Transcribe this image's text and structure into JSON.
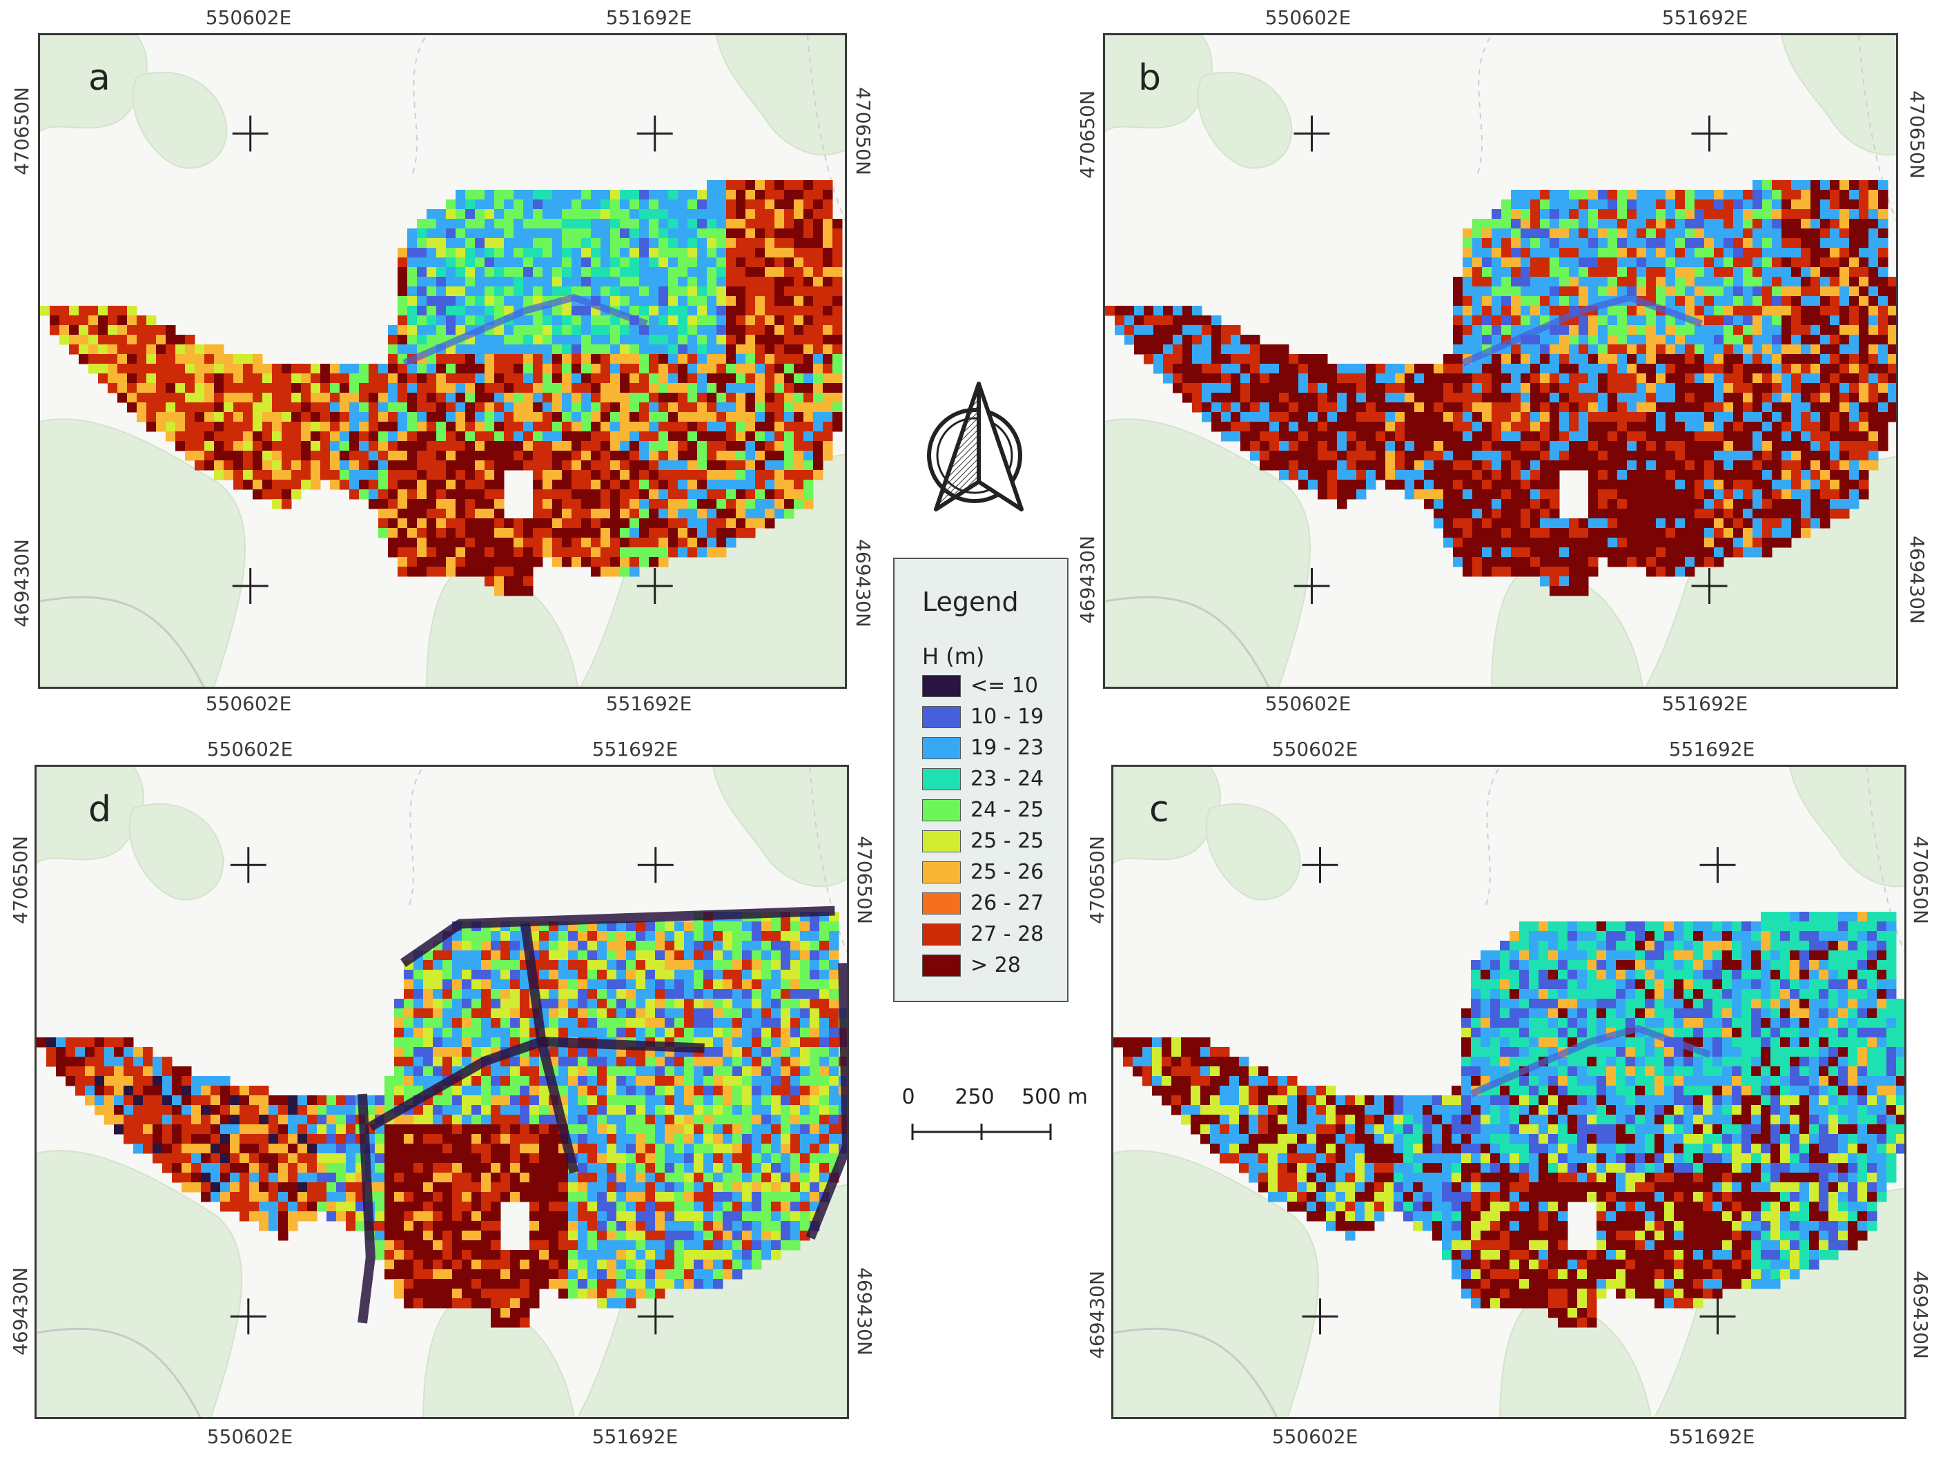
{
  "coords": {
    "x_left": "550602E",
    "x_right": "551692E",
    "y_top": "470650N",
    "y_bottom": "469430N"
  },
  "panels": [
    {
      "id": "a",
      "letter": "a"
    },
    {
      "id": "b",
      "letter": "b"
    },
    {
      "id": "d",
      "letter": "d"
    },
    {
      "id": "c",
      "letter": "c"
    }
  ],
  "legend": {
    "title": "Legend",
    "subtitle": "H (m)",
    "classes": [
      {
        "label": "<= 10",
        "color": "#2a1540"
      },
      {
        "label": "10 - 19",
        "color": "#4660dc"
      },
      {
        "label": "19 - 23",
        "color": "#37a9f4"
      },
      {
        "label": "23 - 24",
        "color": "#1fe0b0"
      },
      {
        "label": "24 - 25",
        "color": "#6ef55a"
      },
      {
        "label": "25 - 25",
        "color": "#d2ec32"
      },
      {
        "label": "25 - 26",
        "color": "#f9b534"
      },
      {
        "label": "26 - 27",
        "color": "#f56f1c"
      },
      {
        "label": "27 - 28",
        "color": "#cd2a08"
      },
      {
        "label": "> 28",
        "color": "#7a0403"
      }
    ]
  },
  "scale": {
    "labels": [
      "0",
      "250",
      "500 m"
    ]
  },
  "north_arrow": {
    "icon": "north-arrow-icon"
  }
}
